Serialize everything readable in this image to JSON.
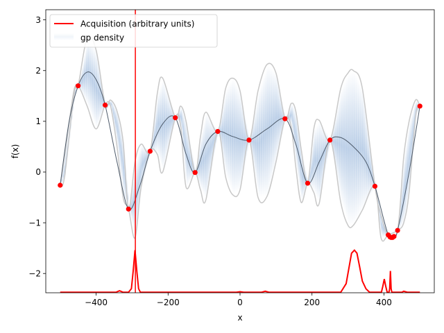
{
  "chart_data": {
    "type": "line",
    "title": "",
    "xlabel": "x",
    "ylabel": "f(x)",
    "xlim": [
      -540,
      540
    ],
    "ylim": [
      -2.38,
      3.2
    ],
    "xticks": [
      -400,
      -200,
      0,
      200,
      400
    ],
    "xtick_labels": [
      "−400",
      "−200",
      "0",
      "200",
      "400"
    ],
    "yticks": [
      -2,
      -1,
      0,
      1,
      2,
      3
    ],
    "ytick_labels": [
      "−2",
      "−1",
      "0",
      "1",
      "2",
      "3"
    ],
    "grid": false,
    "legend_position": "upper-left",
    "legend": [
      {
        "label": "Acquisition (arbitrary units)",
        "color": "#ff0000",
        "style": "line"
      },
      {
        "label": "gp density",
        "color": "#4a7fc0",
        "style": "patch"
      }
    ],
    "colors": {
      "observation": "#ff0000",
      "mean": "#4d5a6a",
      "band_edge": "#c8c8c8",
      "density": "#4a7fc0",
      "acquisition": "#ff0000",
      "vline": "#ff0000"
    },
    "observations": {
      "x": [
        -500,
        -450,
        -375,
        -310,
        -250,
        -180,
        -125,
        -62,
        25,
        125,
        188,
        250,
        375,
        412,
        417,
        420,
        424,
        428,
        438,
        500
      ],
      "y": [
        -0.26,
        1.7,
        1.32,
        -0.73,
        0.41,
        1.07,
        -0.01,
        0.8,
        0.63,
        1.05,
        -0.22,
        0.63,
        -0.28,
        -1.24,
        -1.28,
        -1.29,
        -1.29,
        -1.27,
        -1.15,
        1.3
      ]
    },
    "gp_mean": {
      "x": [
        -500,
        -475,
        -450,
        -425,
        -400,
        -375,
        -342,
        -310,
        -280,
        -250,
        -215,
        -180,
        -150,
        -125,
        -95,
        -62,
        -20,
        25,
        75,
        125,
        155,
        188,
        220,
        250,
        280,
        315,
        350,
        375,
        400,
        412,
        420,
        428,
        438,
        470,
        500
      ],
      "y": [
        -0.26,
        1.0,
        1.7,
        1.97,
        1.82,
        1.32,
        0.2,
        -0.73,
        -0.3,
        0.41,
        0.95,
        1.07,
        0.35,
        -0.01,
        0.55,
        0.8,
        0.7,
        0.63,
        0.85,
        1.05,
        0.55,
        -0.22,
        0.2,
        0.63,
        0.68,
        0.5,
        0.2,
        -0.28,
        -0.95,
        -1.24,
        -1.29,
        -1.27,
        -1.15,
        0.0,
        1.3
      ]
    },
    "gp_upper": {
      "x": [
        -500,
        -488,
        -462,
        -450,
        -425,
        -400,
        -375,
        -360,
        -342,
        -325,
        -310,
        -292,
        -275,
        -250,
        -230,
        -215,
        -180,
        -165,
        -150,
        -125,
        -110,
        -95,
        -62,
        -40,
        -20,
        0,
        25,
        50,
        75,
        100,
        125,
        142,
        155,
        170,
        188,
        205,
        220,
        250,
        280,
        300,
        315,
        340,
        375,
        392,
        412,
        438,
        455,
        470,
        488,
        500
      ],
      "y": [
        -0.26,
        0.3,
        1.6,
        1.7,
        2.65,
        2.4,
        1.32,
        1.42,
        1.2,
        0.6,
        -0.73,
        0.2,
        0.55,
        0.41,
        1.55,
        1.85,
        1.07,
        1.3,
        1.0,
        -0.01,
        0.7,
        1.18,
        0.8,
        1.65,
        1.85,
        1.6,
        0.63,
        1.6,
        2.12,
        1.95,
        1.05,
        1.35,
        1.2,
        0.45,
        -0.22,
        0.85,
        1.02,
        0.63,
        1.65,
        1.95,
        2.0,
        1.65,
        -0.28,
        -0.85,
        -1.24,
        -1.15,
        0.3,
        1.0,
        1.42,
        1.3
      ]
    },
    "gp_lower": {
      "x": [
        -500,
        -488,
        -462,
        -450,
        -425,
        -400,
        -375,
        -360,
        -342,
        -325,
        -310,
        -292,
        -275,
        -250,
        -230,
        -215,
        -180,
        -165,
        -150,
        -125,
        -110,
        -95,
        -62,
        -40,
        -20,
        0,
        25,
        50,
        75,
        100,
        125,
        142,
        155,
        170,
        188,
        205,
        220,
        250,
        280,
        300,
        315,
        340,
        375,
        392,
        412,
        438,
        455,
        470,
        488,
        500
      ],
      "y": [
        -0.26,
        -0.1,
        1.5,
        1.7,
        1.3,
        0.85,
        1.32,
        1.3,
        0.5,
        -0.5,
        -0.73,
        -1.3,
        -0.3,
        0.41,
        0.35,
        0.0,
        1.07,
        0.9,
        -0.3,
        -0.01,
        -0.35,
        -0.55,
        0.8,
        -0.1,
        -0.45,
        -0.35,
        0.63,
        -0.5,
        -0.48,
        0.2,
        1.05,
        0.9,
        0.1,
        -0.6,
        -0.22,
        -0.4,
        -0.62,
        0.63,
        -0.6,
        -1.05,
        -1.05,
        -0.75,
        -0.28,
        -1.3,
        -1.24,
        -1.15,
        -1.0,
        -0.4,
        1.1,
        1.3
      ]
    },
    "acquisition": {
      "x": [
        -500,
        -345,
        -335,
        -325,
        -310,
        -302,
        -297,
        -292,
        -287,
        -282,
        -277,
        -270,
        -180,
        -10,
        0,
        10,
        60,
        70,
        80,
        150,
        280,
        295,
        305,
        310,
        318,
        325,
        332,
        340,
        350,
        360,
        393,
        397,
        401,
        405,
        409,
        414,
        416,
        418,
        420,
        422,
        424,
        440,
        450,
        455,
        465,
        500
      ],
      "y": [
        -2.37,
        -2.37,
        -2.34,
        -2.37,
        -2.37,
        -2.3,
        -1.95,
        -1.54,
        -1.95,
        -2.3,
        -2.37,
        -2.37,
        -2.37,
        -2.37,
        -2.36,
        -2.37,
        -2.37,
        -2.35,
        -2.37,
        -2.37,
        -2.37,
        -2.2,
        -1.8,
        -1.6,
        -1.54,
        -1.6,
        -1.85,
        -2.15,
        -2.3,
        -2.37,
        -2.37,
        -2.25,
        -2.11,
        -2.25,
        -2.37,
        -2.37,
        -2.3,
        -1.95,
        -2.3,
        -2.37,
        -2.37,
        -2.37,
        -2.37,
        -2.35,
        -2.37,
        -2.37
      ]
    },
    "vline_x": -291
  }
}
